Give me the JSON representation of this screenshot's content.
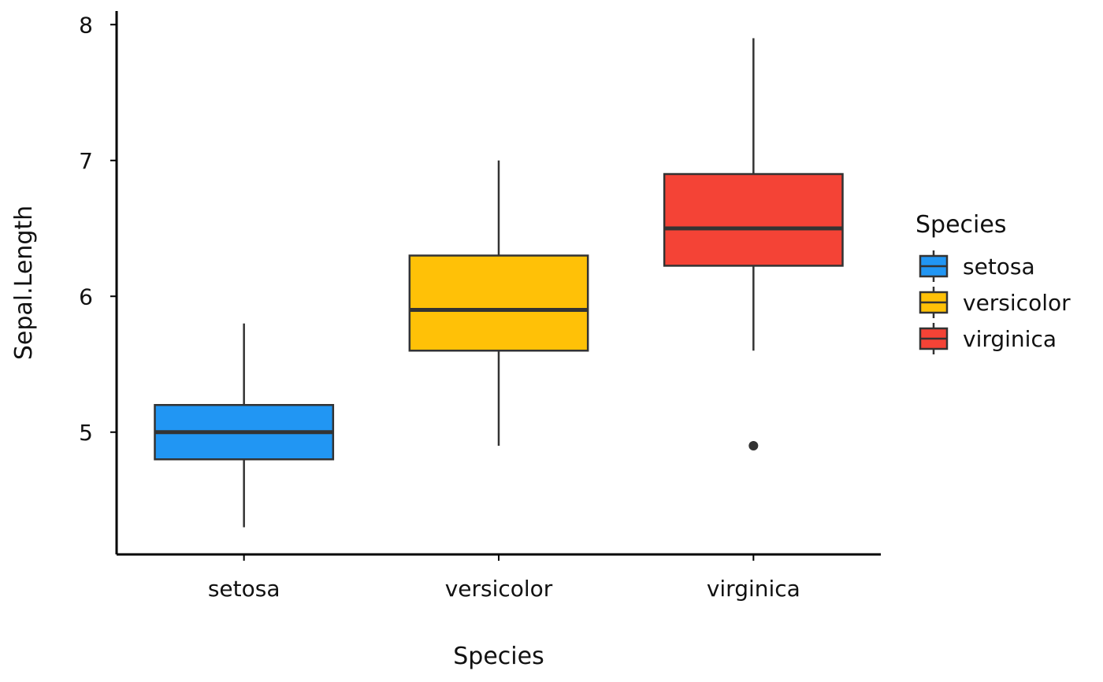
{
  "chart_data": {
    "type": "boxplot",
    "title": "",
    "xlabel": "Species",
    "ylabel": "Sepal.Length",
    "categories": [
      "setosa",
      "versicolor",
      "virginica"
    ],
    "ylim": [
      4.1,
      8.1
    ],
    "yticks": [
      5,
      6,
      7,
      8
    ],
    "grid": false,
    "boxes": [
      {
        "category": "setosa",
        "whisker_low": 4.3,
        "q1": 4.8,
        "median": 5.0,
        "q3": 5.2,
        "whisker_high": 5.8,
        "outliers": [],
        "color": "#2196F3"
      },
      {
        "category": "versicolor",
        "whisker_low": 4.9,
        "q1": 5.6,
        "median": 5.9,
        "q3": 6.3,
        "whisker_high": 7.0,
        "outliers": [],
        "color": "#FFC107"
      },
      {
        "category": "virginica",
        "whisker_low": 5.6,
        "q1": 6.225,
        "median": 6.5,
        "q3": 6.9,
        "whisker_high": 7.9,
        "outliers": [
          4.9
        ],
        "color": "#F44336"
      }
    ],
    "legend": {
      "title": "Species",
      "position": "right",
      "entries": [
        "setosa",
        "versicolor",
        "virginica"
      ]
    }
  }
}
